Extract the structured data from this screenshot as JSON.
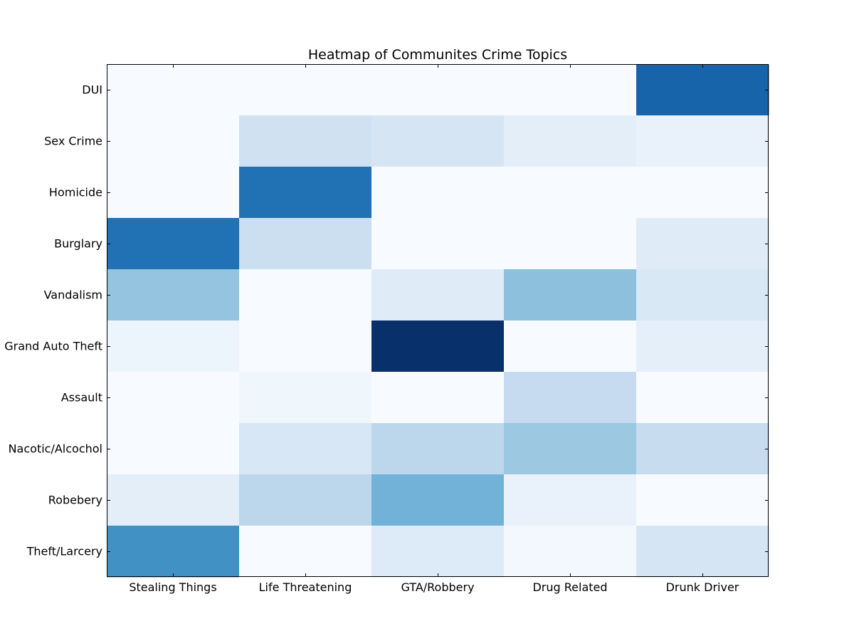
{
  "chart_data": {
    "type": "heatmap",
    "title": "Heatmap of Communites Crime Topics",
    "xlabel": "",
    "ylabel": "",
    "x_categories": [
      "Stealing Things",
      "Life Threatening",
      "GTA/Robbery",
      "Drug Related",
      "Drunk Driver"
    ],
    "y_categories": [
      "DUI",
      "Sex Crime",
      "Homicide",
      "Burglary",
      "Vandalism",
      "Grand Auto Theft",
      "Assault",
      "Nacotic/Alcochol",
      "Robebery",
      "Theft/Larcery"
    ],
    "values": [
      [
        0.0,
        0.0,
        0.0,
        0.0,
        0.8
      ],
      [
        0.0,
        0.2,
        0.17,
        0.1,
        0.07
      ],
      [
        0.0,
        0.75,
        0.0,
        0.0,
        0.0
      ],
      [
        0.75,
        0.22,
        0.0,
        0.0,
        0.12
      ],
      [
        0.4,
        0.0,
        0.12,
        0.42,
        0.15
      ],
      [
        0.05,
        0.0,
        1.0,
        0.0,
        0.09
      ],
      [
        0.0,
        0.04,
        0.0,
        0.25,
        0.0
      ],
      [
        0.0,
        0.16,
        0.28,
        0.38,
        0.24
      ],
      [
        0.1,
        0.28,
        0.48,
        0.07,
        0.0
      ],
      [
        0.63,
        0.0,
        0.13,
        0.02,
        0.17
      ]
    ],
    "vmin": 0,
    "vmax": 1,
    "colormap": "Blues",
    "colormap_stops": [
      "#f7fbff",
      "#deebf7",
      "#c6dbef",
      "#9ecae1",
      "#6baed6",
      "#4292c6",
      "#2171b5",
      "#08519c",
      "#08306b"
    ],
    "grid": false,
    "legend": "none"
  }
}
